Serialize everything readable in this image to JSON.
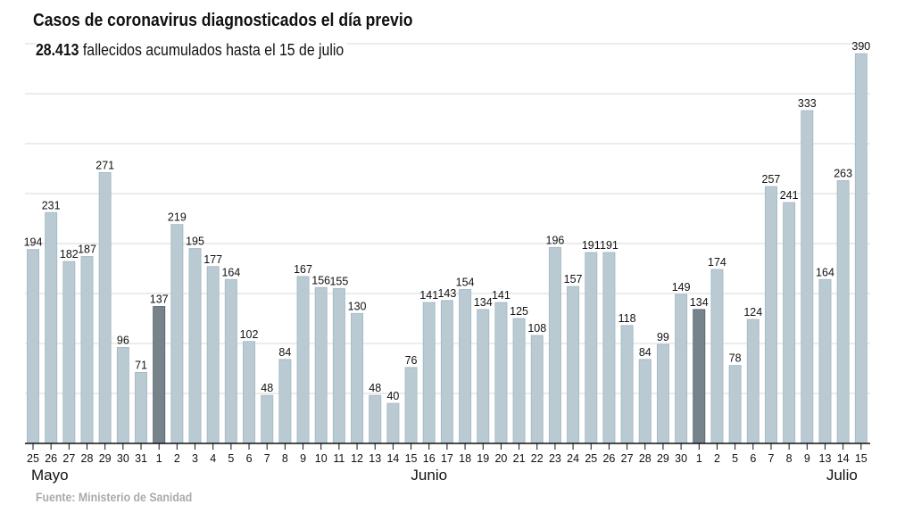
{
  "title": "Casos de coronavirus diagnosticados el día previo",
  "subtitle": {
    "value": "28.413",
    "text": "fallecidos acumulados hasta el 15 de julio"
  },
  "source": "Fuente: Ministerio de Sanidad",
  "colors": {
    "bar": "#b9cad3",
    "highlight": "#76838b",
    "grid": "#d9d9d9",
    "axis": "#111111"
  },
  "chart_data": {
    "type": "bar",
    "title": "Casos de coronavirus diagnosticados el día previo",
    "ylim": [
      0,
      400
    ],
    "grid_step": 50,
    "grid": true,
    "categories": [
      "25",
      "26",
      "27",
      "28",
      "29",
      "30",
      "31",
      "1",
      "2",
      "3",
      "4",
      "5",
      "6",
      "7",
      "8",
      "9",
      "10",
      "11",
      "12",
      "13",
      "14",
      "15",
      "16",
      "17",
      "18",
      "19",
      "20",
      "21",
      "22",
      "23",
      "24",
      "25",
      "26",
      "27",
      "28",
      "29",
      "30",
      "1",
      "2",
      "5",
      "6",
      "7",
      "8",
      "9",
      "13",
      "14",
      "15"
    ],
    "values": [
      194,
      231,
      182,
      187,
      271,
      96,
      71,
      137,
      219,
      195,
      177,
      164,
      102,
      48,
      84,
      167,
      156,
      155,
      130,
      48,
      40,
      76,
      141,
      143,
      154,
      134,
      141,
      125,
      108,
      196,
      157,
      191,
      191,
      118,
      84,
      99,
      149,
      134,
      174,
      78,
      124,
      257,
      241,
      333,
      164,
      263,
      390
    ],
    "highlighted_indices": [
      7,
      37
    ],
    "months": [
      {
        "label": "Mayo",
        "align": "start",
        "index": 0
      },
      {
        "label": "Junio",
        "align": "middle",
        "index": 22
      },
      {
        "label": "Julio",
        "align": "end",
        "index": 46
      }
    ]
  }
}
